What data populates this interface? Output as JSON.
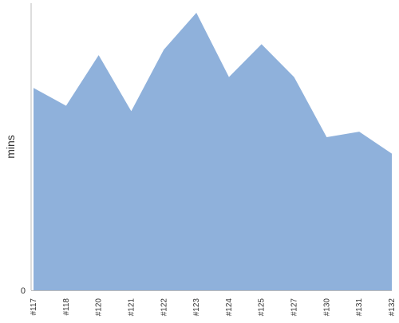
{
  "chart_data": {
    "type": "area",
    "title": "",
    "xlabel": "",
    "ylabel": "mins",
    "categories": [
      "#117",
      "#118",
      "#120",
      "#121",
      "#122",
      "#123",
      "#124",
      "#125",
      "#127",
      "#130",
      "#131",
      "#132"
    ],
    "series": [
      {
        "values": [
          74,
          67.5,
          86,
          65.5,
          88,
          101.5,
          78,
          90,
          78,
          56,
          58,
          50
        ]
      }
    ],
    "ylim": [
      0,
      105
    ],
    "yticks": [
      {
        "value": 0,
        "label": "0"
      }
    ],
    "grid": false,
    "legend": "none",
    "colors": {
      "area_fill": "#8fb1db",
      "axis": "#bbbbbb",
      "text": "#333333"
    }
  }
}
